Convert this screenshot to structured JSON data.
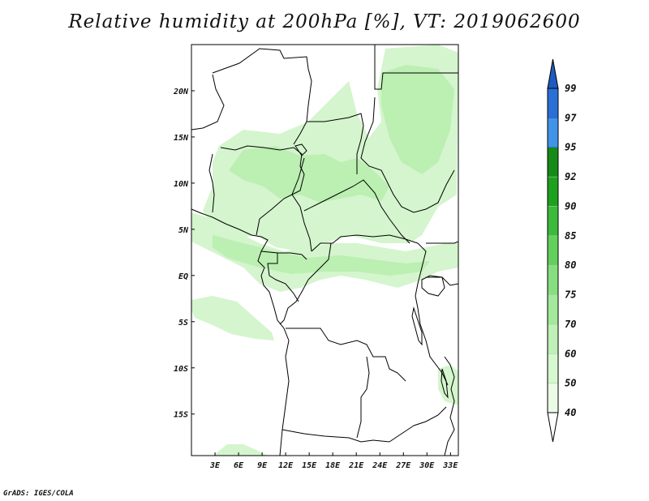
{
  "title": "Relative humidity at 200hPa [%], VT: 2019062600",
  "credit": "GrADS: IGES/COLA",
  "map": {
    "lat_range": [
      -19.5,
      25
    ],
    "lon_range": [
      0,
      34
    ],
    "lat_ticks": [
      {
        "label": "20N",
        "lat": 20
      },
      {
        "label": "15N",
        "lat": 15
      },
      {
        "label": "10N",
        "lat": 10
      },
      {
        "label": "5N",
        "lat": 5
      },
      {
        "label": "EQ",
        "lat": 0
      },
      {
        "label": "5S",
        "lat": -5
      },
      {
        "label": "10S",
        "lat": -10
      },
      {
        "label": "15S",
        "lat": -15
      }
    ],
    "lon_ticks": [
      {
        "label": "3E",
        "lon": 3
      },
      {
        "label": "6E",
        "lon": 6
      },
      {
        "label": "9E",
        "lon": 9
      },
      {
        "label": "12E",
        "lon": 12
      },
      {
        "label": "15E",
        "lon": 15
      },
      {
        "label": "18E",
        "lon": 18
      },
      {
        "label": "21E",
        "lon": 21
      },
      {
        "label": "24E",
        "lon": 24
      },
      {
        "label": "27E",
        "lon": 27
      },
      {
        "label": "30E",
        "lon": 30
      },
      {
        "label": "33E",
        "lon": 33
      }
    ]
  },
  "colorbar": {
    "levels": [
      "40",
      "50",
      "60",
      "70",
      "75",
      "80",
      "85",
      "90",
      "92",
      "95",
      "97",
      "99"
    ],
    "colors": [
      "#ffffff",
      "#eafbe6",
      "#d6f7cf",
      "#bff0b7",
      "#a4e89c",
      "#86de80",
      "#62d05c",
      "#3cba3c",
      "#1ea11e",
      "#168a16",
      "#4193e8",
      "#2a6fd6",
      "#1e5bc0"
    ]
  },
  "colors": {
    "humidity_light": "#d4f5cd",
    "humidity_mid": "#bcefb2",
    "border": "#000000"
  }
}
